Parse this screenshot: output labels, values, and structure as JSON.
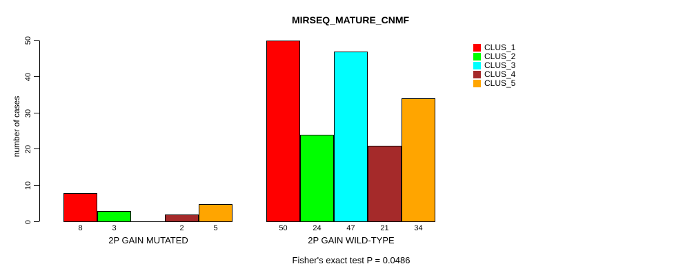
{
  "title": "MIRSEQ_MATURE_CNMF",
  "subtitle": "Fisher's exact test P = 0.0486",
  "chart_data": {
    "type": "bar",
    "title": "MIRSEQ_MATURE_CNMF",
    "xlabel": "",
    "ylabel": "number of cases",
    "ylim": [
      0,
      50
    ],
    "yticks": [
      0,
      10,
      20,
      30,
      40,
      50
    ],
    "grid": false,
    "legend_position": "right",
    "groups": [
      "2P GAIN MUTATED",
      "2P GAIN WILD-TYPE"
    ],
    "series": [
      {
        "name": "CLUS_1",
        "color": "#FF0000",
        "values": [
          8,
          50
        ]
      },
      {
        "name": "CLUS_2",
        "color": "#00FF00",
        "values": [
          3,
          24
        ]
      },
      {
        "name": "CLUS_3",
        "color": "#00FFFF",
        "values": [
          0,
          47
        ]
      },
      {
        "name": "CLUS_4",
        "color": "#A52A2A",
        "values": [
          2,
          21
        ]
      },
      {
        "name": "CLUS_5",
        "color": "#FFA500",
        "values": [
          5,
          34
        ]
      }
    ],
    "bar_value_labels": {
      "2P GAIN MUTATED": [
        "8",
        "3",
        "",
        "2",
        "5"
      ],
      "2P GAIN WILD-TYPE": [
        "50",
        "24",
        "47",
        "21",
        "34"
      ]
    },
    "annotation": "Fisher's exact test P = 0.0486"
  },
  "legend": {
    "items": [
      {
        "label": "CLUS_1",
        "color": "#FF0000"
      },
      {
        "label": "CLUS_2",
        "color": "#00FF00"
      },
      {
        "label": "CLUS_3",
        "color": "#00FFFF"
      },
      {
        "label": "CLUS_4",
        "color": "#A52A2A"
      },
      {
        "label": "CLUS_5",
        "color": "#FFA500"
      }
    ]
  }
}
